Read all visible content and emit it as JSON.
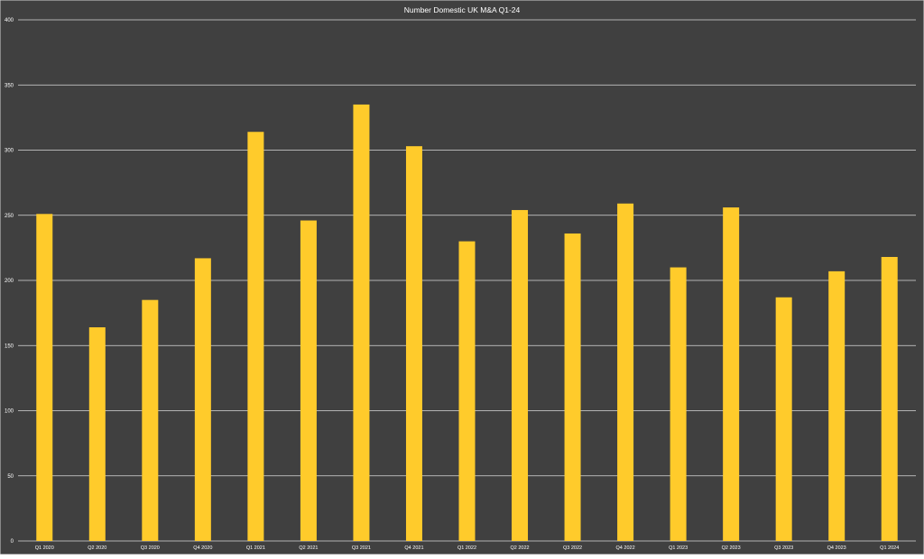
{
  "chart_data": {
    "type": "bar",
    "title": "Number Domestic UK M&A Q1-24",
    "xlabel": "",
    "ylabel": "",
    "ylim": [
      0,
      400
    ],
    "yticks": [
      0,
      50,
      100,
      150,
      200,
      250,
      300,
      350,
      400
    ],
    "grid": true,
    "legend": "none",
    "categories": [
      "Q1 2020",
      "Q2 2020",
      "Q3 2020",
      "Q4 2020",
      "Q1 2021",
      "Q2 2021",
      "Q3 2021",
      "Q4 2021",
      "Q1 2022",
      "Q2 2022",
      "Q3 2022",
      "Q4 2022",
      "Q1 2023",
      "Q2 2023",
      "Q3 2023",
      "Q4 2023",
      "Q1 2024"
    ],
    "values": [
      251,
      164,
      185,
      217,
      314,
      246,
      335,
      303,
      230,
      254,
      236,
      259,
      210,
      256,
      187,
      207,
      218
    ]
  },
  "colors": {
    "background": "#404040",
    "bar": "#FFCB2B",
    "grid": "#d9d9d9",
    "text": "#ffffff",
    "border": "#d0d0d0"
  }
}
